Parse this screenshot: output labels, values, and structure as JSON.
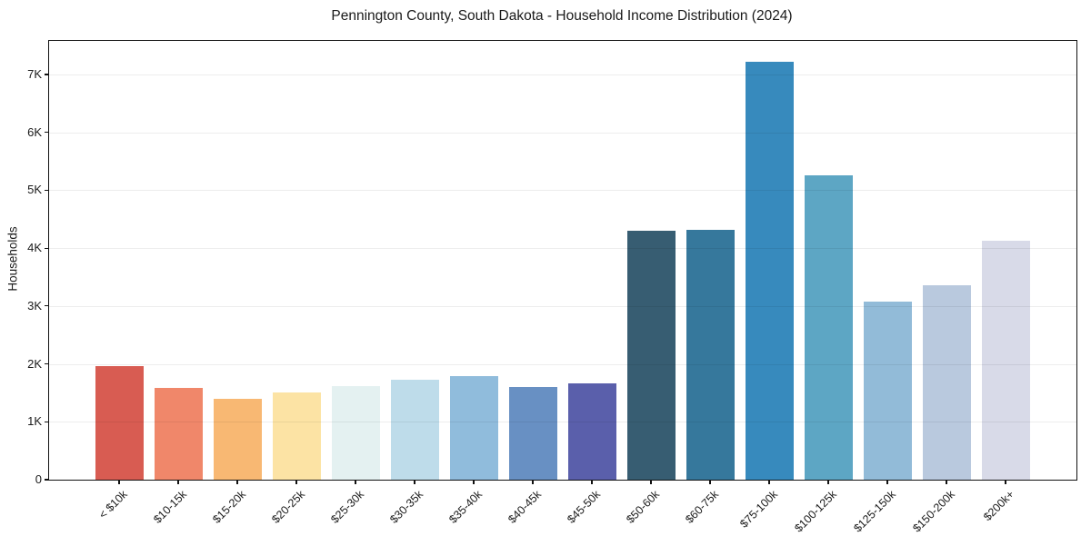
{
  "chart_data": {
    "type": "bar",
    "title": "Pennington County, South Dakota - Household Income Distribution (2024)",
    "xlabel": "",
    "ylabel": "Households",
    "categories": [
      "< $10k",
      "$10-15k",
      "$15-20k",
      "$20-25k",
      "$25-30k",
      "$30-35k",
      "$35-40k",
      "$40-45k",
      "$45-50k",
      "$50-60k",
      "$60-75k",
      "$75-100k",
      "$100-125k",
      "$125-150k",
      "$150-200k",
      "$200k+"
    ],
    "values": [
      1960,
      1590,
      1390,
      1500,
      1620,
      1730,
      1790,
      1600,
      1660,
      4300,
      4320,
      7220,
      5260,
      3080,
      3360,
      4130
    ],
    "bar_colors": [
      "#d85c52",
      "#f0876a",
      "#f8b873",
      "#fce3a4",
      "#e4f1f1",
      "#bedcea",
      "#90bcdc",
      "#6890c3",
      "#5a5fab",
      "#375d72",
      "#36789c",
      "#378abd",
      "#5da6c4",
      "#92bbd8",
      "#b9c9de",
      "#d8dae8"
    ],
    "ylim": [
      0,
      7580
    ],
    "yticks": [
      {
        "value": 0,
        "label": "0"
      },
      {
        "value": 1000,
        "label": "1K"
      },
      {
        "value": 2000,
        "label": "2K"
      },
      {
        "value": 3000,
        "label": "3K"
      },
      {
        "value": 4000,
        "label": "4K"
      },
      {
        "value": 5000,
        "label": "5K"
      },
      {
        "value": 6000,
        "label": "6K"
      },
      {
        "value": 7000,
        "label": "7K"
      }
    ],
    "grid": "horizontal",
    "legend": "none"
  }
}
